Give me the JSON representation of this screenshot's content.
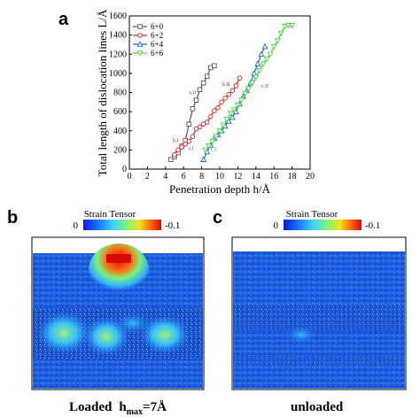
{
  "figure": {
    "panel_a_label": "a",
    "panel_b_label": "b",
    "panel_c_label": "c"
  },
  "chart_data": {
    "type": "line",
    "xlabel": "Penetration depth h/Å",
    "ylabel": "Total length of dislocation lines L/Å",
    "xlim": [
      0,
      20
    ],
    "ylim": [
      0,
      1600
    ],
    "xticks": [
      0,
      2,
      4,
      6,
      8,
      10,
      12,
      14,
      16,
      18,
      20
    ],
    "yticks": [
      0,
      200,
      400,
      600,
      800,
      1000,
      1200,
      1400,
      1600
    ],
    "grid": false,
    "legend_position": "top-left",
    "series": [
      {
        "name": "6+0",
        "color": "#555555",
        "marker": "square",
        "x": [
          4.6,
          5.0,
          5.4,
          5.8,
          6.2,
          6.6,
          7.0,
          7.4,
          7.8,
          8.2,
          8.6,
          9.0,
          9.4
        ],
        "y": [
          100,
          130,
          170,
          240,
          300,
          470,
          630,
          720,
          830,
          900,
          970,
          1060,
          1080
        ]
      },
      {
        "name": "6+2",
        "color": "#e8191c",
        "marker": "circle",
        "x": [
          5.0,
          5.4,
          5.8,
          6.2,
          6.6,
          7.0,
          7.4,
          7.8,
          8.2,
          8.6,
          9.0,
          9.4,
          9.8,
          10.2,
          10.6,
          11.0,
          11.4,
          11.8,
          12.2
        ],
        "y": [
          150,
          200,
          230,
          260,
          290,
          340,
          420,
          440,
          470,
          490,
          550,
          610,
          640,
          700,
          740,
          780,
          820,
          870,
          950
        ]
      },
      {
        "name": "6+4",
        "color": "#2364d8",
        "marker": "triangle",
        "x": [
          8.2,
          8.6,
          9.0,
          9.4,
          9.8,
          10.2,
          10.6,
          11.0,
          11.4,
          11.8,
          12.2,
          12.6,
          13.0,
          13.4,
          13.8,
          14.2,
          14.6,
          15.0
        ],
        "y": [
          100,
          180,
          250,
          320,
          360,
          400,
          450,
          500,
          540,
          600,
          680,
          760,
          820,
          900,
          1000,
          1100,
          1200,
          1280
        ]
      },
      {
        "name": "6+6",
        "color": "#45d43a",
        "marker": "triangle-down",
        "x": [
          8.4,
          8.8,
          9.2,
          9.6,
          10.0,
          10.4,
          10.8,
          11.2,
          11.6,
          12.0,
          12.4,
          12.8,
          13.2,
          13.6,
          14.0,
          14.4,
          14.8,
          15.2,
          15.6,
          16.0,
          16.4,
          16.8,
          17.2,
          17.6,
          18.0
        ],
        "y": [
          200,
          240,
          290,
          340,
          400,
          460,
          520,
          580,
          620,
          670,
          720,
          790,
          840,
          900,
          960,
          1030,
          1100,
          1150,
          1200,
          1280,
          1340,
          1420,
          1490,
          1500,
          1500
        ]
      }
    ],
    "annotations": [
      {
        "text": "a.II",
        "x": 6.6,
        "y": 780,
        "color": "#555555"
      },
      {
        "text": "a.I",
        "x": 6.5,
        "y": 200,
        "color": "#555555"
      },
      {
        "text": "b.I",
        "x": 4.8,
        "y": 280,
        "color": "#e8191c"
      },
      {
        "text": "b.II",
        "x": 10.3,
        "y": 870,
        "color": "#e8191c"
      },
      {
        "text": "c.II",
        "x": 14.6,
        "y": 850,
        "color": "#2364d8"
      },
      {
        "text": "c.I",
        "x": 9.0,
        "y": 190,
        "color": "#2364d8"
      }
    ]
  },
  "heatmaps": {
    "colorbar_title": "Strain Tensor",
    "colorbar_min_label": "0",
    "colorbar_max_label": "-0.1",
    "colormap": [
      "#0a1bd8",
      "#1a7bff",
      "#3cd3ff",
      "#7cf27c",
      "#f2e21a",
      "#ff6a10",
      "#d60a0a"
    ],
    "caption_b_main": "Loaded",
    "caption_b_h": "h",
    "caption_b_sub": "max",
    "caption_b_value": "=7Å",
    "caption_c": "unloaded"
  }
}
